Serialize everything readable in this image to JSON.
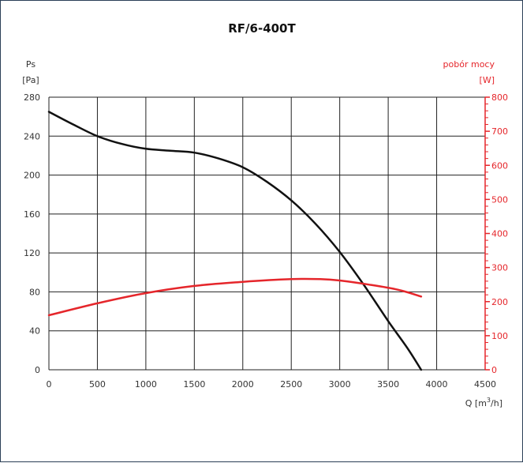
{
  "chart_data": {
    "type": "line",
    "title": "RF/6-400T",
    "xlabel": "Q [m³/h]",
    "xlabel_parts": {
      "base": "Q [m",
      "sup": "3",
      "tail": "/h]"
    },
    "ylabel_left": [
      "Ps",
      "[Pa]"
    ],
    "ylabel_right": [
      "pobór mocy",
      "[W]"
    ],
    "xlim": [
      0,
      4500
    ],
    "ylim_left": [
      0,
      280
    ],
    "ylim_right": [
      0,
      800
    ],
    "x_ticks": [
      0,
      500,
      1000,
      1500,
      2000,
      2500,
      3000,
      3500,
      4000,
      4500
    ],
    "y_ticks_left": [
      0,
      40,
      80,
      120,
      160,
      200,
      240,
      280
    ],
    "y_ticks_right": [
      0,
      100,
      200,
      300,
      400,
      500,
      600,
      700,
      800
    ],
    "grid": true,
    "series": [
      {
        "axis": "left",
        "color": "#111111",
        "x": [
          0,
          250,
          500,
          750,
          1000,
          1250,
          1500,
          1750,
          2000,
          2250,
          2500,
          2750,
          3000,
          3250,
          3500,
          3700,
          3840
        ],
        "y": [
          265,
          252,
          240,
          232,
          227,
          225,
          223,
          217,
          208,
          193,
          174,
          150,
          121,
          87,
          50,
          22,
          0
        ]
      },
      {
        "axis": "right",
        "color": "#e5262b",
        "x": [
          0,
          500,
          1000,
          1500,
          2000,
          2500,
          2800,
          3000,
          3300,
          3600,
          3840
        ],
        "y": [
          160,
          195,
          225,
          246,
          258,
          266,
          266,
          262,
          250,
          235,
          215
        ]
      }
    ]
  }
}
